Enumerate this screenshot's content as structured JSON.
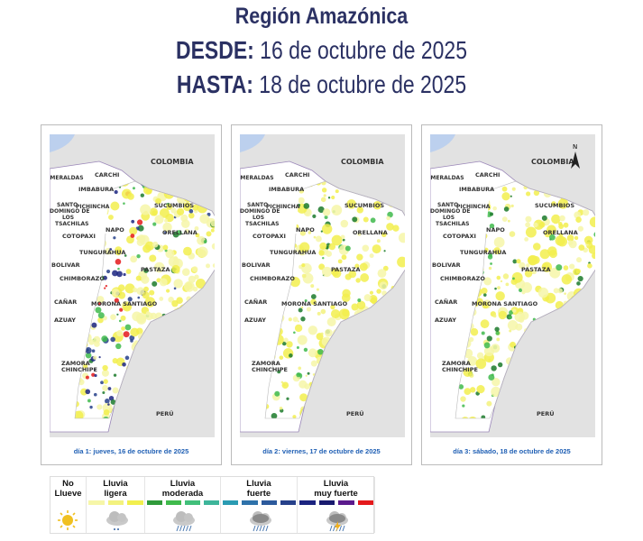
{
  "header": {
    "title": "Región Amazónica",
    "from_label": "DESDE:",
    "from_date": "16 de octubre de 2025",
    "to_label": "HASTA:",
    "to_date": "18 de octubre de 2025"
  },
  "map_labels": [
    "COLOMBIA",
    "ESMERALDAS",
    "CARCHI",
    "IMBABURA",
    "SUCUMBIOS",
    "SANTO",
    "DOMINGO DE",
    "LOS",
    "TSACHILAS",
    "PICHINCHA",
    "NAPO",
    "ORELLANA",
    "COTOPAXI",
    "TUNGURAHUA",
    "BOLIVAR",
    "PASTAZA",
    "CHIMBORAZO",
    "CAÑAR",
    "MORONA SANTIAGO",
    "AZUAY",
    "ZAMORA",
    "CHINCHIPE",
    "PERÚ"
  ],
  "north_arrow": "N",
  "maps": [
    {
      "caption": "día 1: jueves, 16 de octubre de 2025",
      "intensity": "muy fuerte"
    },
    {
      "caption": "día 2: viernes, 17 de octubre de 2025",
      "intensity": "moderada"
    },
    {
      "caption": "día 3: sábado, 18 de octubre de 2025",
      "intensity": "moderada"
    }
  ],
  "legend": [
    {
      "label": "No\nLlueve",
      "icon": "sun-icon",
      "colors": []
    },
    {
      "label": "Lluvia\nligera",
      "icon": "light-rain-cloud-icon",
      "colors": [
        "#f6f6a8",
        "#f3f27e",
        "#f2ef4e"
      ]
    },
    {
      "label": "Lluvia\nmoderada",
      "icon": "rain-cloud-icon",
      "colors": [
        "#2f9a3a",
        "#3fba4c",
        "#41bf7a",
        "#3db59a"
      ]
    },
    {
      "label": "Lluvia\nfuerte",
      "icon": "heavy-rain-cloud-icon",
      "colors": [
        "#2a9bb2",
        "#2e72aa",
        "#2c5a9c",
        "#26408a"
      ]
    },
    {
      "label": "Lluvia\nmuy fuerte",
      "icon": "storm-cloud-icon",
      "colors": [
        "#1b2480",
        "#181a6e",
        "#5b1a8c",
        "#e4191b"
      ]
    }
  ]
}
